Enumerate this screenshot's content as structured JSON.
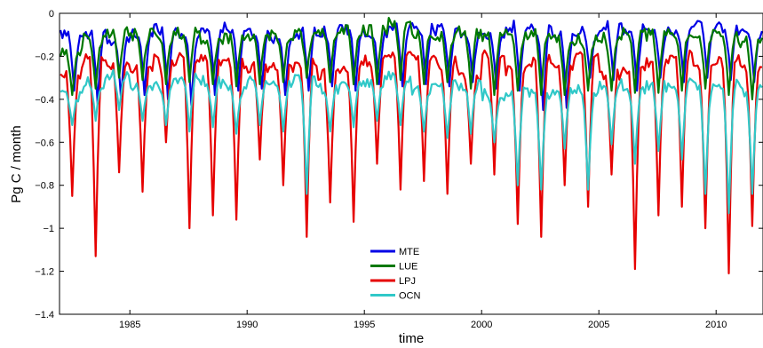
{
  "chart_data": {
    "type": "line",
    "title": "",
    "xlabel": "time",
    "ylabel": "Pg C / month",
    "xlim": [
      1982,
      2012
    ],
    "ylim": [
      -1.4,
      0
    ],
    "xticks": [
      1985,
      1990,
      1995,
      2000,
      2005,
      2010
    ],
    "yticks": [
      0,
      -0.2,
      -0.4,
      -0.6,
      -0.8,
      -1,
      -1.2,
      -1.4
    ],
    "ytick_labels": [
      "0",
      "−0.2",
      "−0.4",
      "−0.6",
      "−0.8",
      "−1",
      "−1.2",
      "−1.4"
    ],
    "grid": false,
    "legend_position": "bottom-center",
    "sampling": "monthly, Jan 1982 – Dec 2011",
    "series": [
      {
        "name": "MTE",
        "color": "#0000e6",
        "annual_max": [
          -0.1,
          -0.1,
          -0.12,
          -0.1,
          -0.07,
          -0.09,
          -0.08,
          -0.07,
          -0.09,
          -0.11,
          -0.09,
          -0.08,
          -0.07,
          -0.1,
          -0.07,
          -0.06,
          -0.08,
          -0.1,
          -0.09,
          -0.06,
          -0.08,
          -0.1,
          -0.09,
          -0.06,
          -0.07,
          -0.09,
          -0.08,
          -0.06,
          -0.07,
          -0.08
        ],
        "annual_min": [
          -0.36,
          -0.42,
          -0.4,
          -0.38,
          -0.4,
          -0.43,
          -0.38,
          -0.36,
          -0.35,
          -0.38,
          -0.36,
          -0.34,
          -0.36,
          -0.33,
          -0.34,
          -0.33,
          -0.34,
          -0.32,
          -0.35,
          -0.36,
          -0.45,
          -0.44,
          -0.3,
          -0.31,
          -0.36,
          -0.3,
          -0.32,
          -0.3,
          -0.31,
          -0.32
        ],
        "trough_month": 7
      },
      {
        "name": "LUE",
        "color": "#007800",
        "annual_max": [
          -0.18,
          -0.12,
          -0.09,
          -0.1,
          -0.1,
          -0.09,
          -0.12,
          -0.11,
          -0.1,
          -0.1,
          -0.1,
          -0.09,
          -0.08,
          -0.08,
          -0.04,
          -0.09,
          -0.1,
          -0.09,
          -0.11,
          -0.1,
          -0.09,
          -0.12,
          -0.12,
          -0.12,
          -0.09,
          -0.1,
          -0.09,
          -0.1,
          -0.11,
          -0.13
        ],
        "annual_min": [
          -0.38,
          -0.35,
          -0.3,
          -0.31,
          -0.33,
          -0.32,
          -0.33,
          -0.34,
          -0.33,
          -0.32,
          -0.3,
          -0.32,
          -0.33,
          -0.33,
          -0.31,
          -0.33,
          -0.32,
          -0.35,
          -0.38,
          -0.36,
          -0.38,
          -0.38,
          -0.36,
          -0.36,
          -0.37,
          -0.37,
          -0.36,
          -0.35,
          -0.38,
          -0.4
        ],
        "trough_month": 6
      },
      {
        "name": "LPJ",
        "color": "#e60000",
        "annual_max": [
          -0.28,
          -0.22,
          -0.25,
          -0.25,
          -0.22,
          -0.2,
          -0.22,
          -0.23,
          -0.25,
          -0.26,
          -0.22,
          -0.28,
          -0.25,
          -0.22,
          -0.2,
          -0.22,
          -0.23,
          -0.28,
          -0.2,
          -0.26,
          -0.22,
          -0.24,
          -0.2,
          -0.28,
          -0.25,
          -0.22,
          -0.2,
          -0.23,
          -0.22,
          -0.25
        ],
        "annual_min": [
          -0.85,
          -1.13,
          -0.74,
          -0.83,
          -0.6,
          -1.0,
          -0.94,
          -0.96,
          -0.68,
          -0.8,
          -1.04,
          -0.88,
          -0.97,
          -0.7,
          -0.82,
          -0.78,
          -0.84,
          -0.7,
          -0.75,
          -0.98,
          -1.04,
          -0.8,
          -0.9,
          -0.75,
          -1.19,
          -0.94,
          -0.9,
          -1.0,
          -1.21,
          -0.99
        ],
        "trough_month": 6
      },
      {
        "name": "OCN",
        "color": "#30c8c8",
        "annual_max": [
          -0.38,
          -0.32,
          -0.29,
          -0.34,
          -0.33,
          -0.3,
          -0.32,
          -0.35,
          -0.32,
          -0.33,
          -0.31,
          -0.35,
          -0.33,
          -0.32,
          -0.3,
          -0.35,
          -0.34,
          -0.33,
          -0.38,
          -0.36,
          -0.38,
          -0.35,
          -0.36,
          -0.33,
          -0.35,
          -0.34,
          -0.33,
          -0.34,
          -0.33,
          -0.36
        ],
        "annual_min": [
          -0.52,
          -0.5,
          -0.45,
          -0.5,
          -0.52,
          -0.55,
          -0.53,
          -0.56,
          -0.52,
          -0.55,
          -0.84,
          -0.55,
          -0.53,
          -0.5,
          -0.52,
          -0.55,
          -0.58,
          -0.56,
          -0.6,
          -0.8,
          -0.82,
          -0.63,
          -0.82,
          -0.61,
          -0.7,
          -0.64,
          -0.68,
          -0.84,
          -0.93,
          -0.84
        ],
        "trough_month": 6
      }
    ]
  }
}
